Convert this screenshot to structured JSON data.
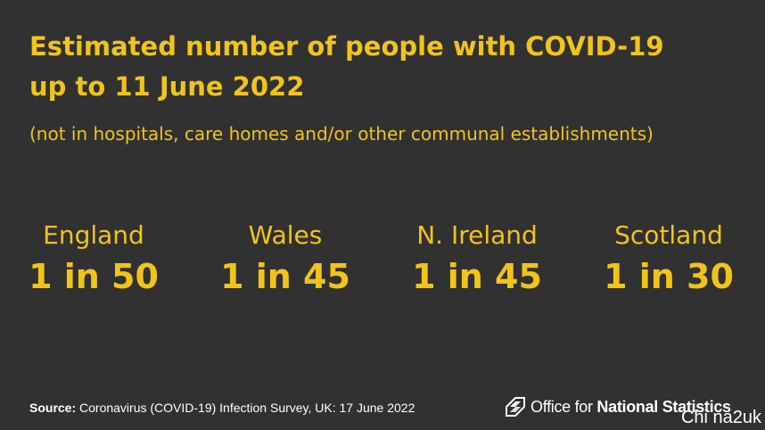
{
  "header": {
    "title_line1": "Estimated number of people with COVID-19",
    "title_line2": "up to 11 June 2022",
    "subtitle": "(not in hospitals, care homes and/or other communal establishments)"
  },
  "stats": [
    {
      "region": "England",
      "ratio": "1 in 50"
    },
    {
      "region": "Wales",
      "ratio": "1 in 45"
    },
    {
      "region": "N. Ireland",
      "ratio": "1 in 45"
    },
    {
      "region": "Scotland",
      "ratio": "1 in 30"
    }
  ],
  "footer": {
    "source_label": "Source:",
    "source_text": "Coronavirus (COVID-19) Infection Survey, UK: 17 June 2022",
    "logo_prefix": "Office for ",
    "logo_bold": "National Statistics",
    "logo_icon": "ons-logo-icon"
  },
  "watermark": "Chi na2uk",
  "colors": {
    "background": "#323132",
    "accent": "#f0c41b",
    "footer_text": "#ffffff"
  }
}
